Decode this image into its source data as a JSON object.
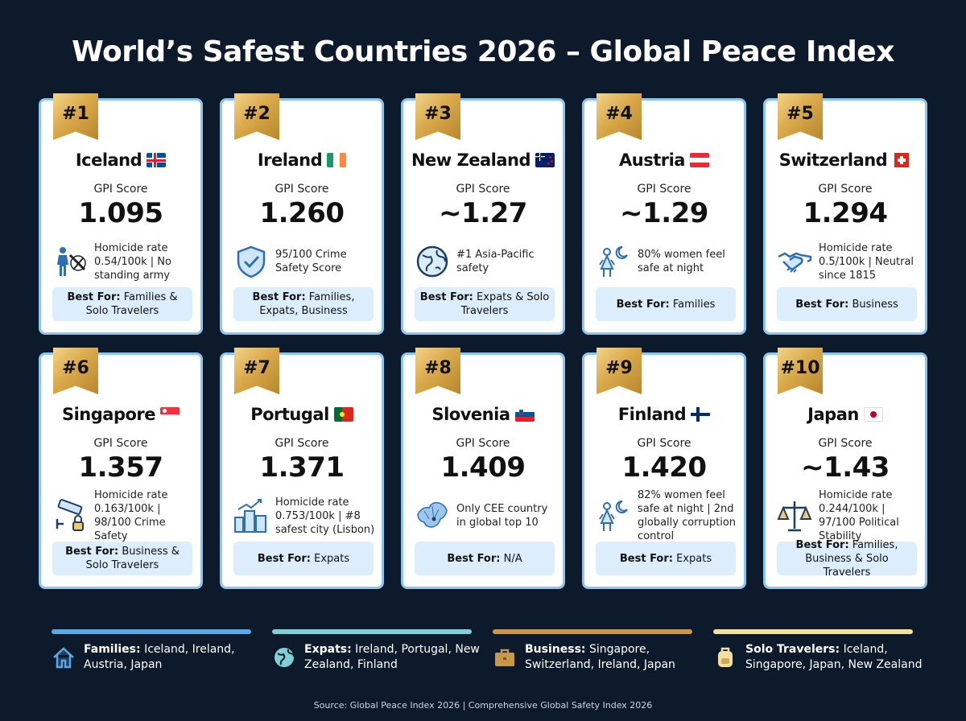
{
  "title": "World’s Safest Countries 2026 – Global Peace Index",
  "gpi_label": "GPI Score",
  "best_for_prefix": "Best For:",
  "cards": [
    {
      "rank": "#1",
      "country": "Iceland",
      "flag": "iceland",
      "score": "1.095",
      "icon": "soldier-no-weapon-icon",
      "detail": "Homicide rate 0.54/100k | No standing army",
      "best_for": "Families & Solo Travelers"
    },
    {
      "rank": "#2",
      "country": "Ireland",
      "flag": "ireland",
      "score": "1.260",
      "icon": "shield-check-icon",
      "detail": "95/100 Crime Safety Score",
      "best_for": "Families, Expats, Business"
    },
    {
      "rank": "#3",
      "country": "New Zealand",
      "flag": "new-zealand",
      "score": "~1.27",
      "icon": "globe-icon",
      "detail": "#1 Asia-Pacific safety",
      "best_for": "Expats & Solo Travelers"
    },
    {
      "rank": "#4",
      "country": "Austria",
      "flag": "austria",
      "score": "~1.29",
      "icon": "woman-moon-icon",
      "detail": "80% women feel safe at night",
      "best_for": "Families"
    },
    {
      "rank": "#5",
      "country": "Switzerland",
      "flag": "switzerland",
      "score": "1.294",
      "icon": "handshake-icon",
      "detail": "Homicide rate 0.5/100k | Neutral since 1815",
      "best_for": "Business"
    },
    {
      "rank": "#6",
      "country": "Singapore",
      "flag": "singapore",
      "score": "1.357",
      "icon": "cctv-lock-icon",
      "detail": "Homicide rate 0.163/100k | 98/100 Crime Safety",
      "best_for": "Business & Solo Travelers"
    },
    {
      "rank": "#7",
      "country": "Portugal",
      "flag": "portugal",
      "score": "1.371",
      "icon": "city-growth-icon",
      "detail": "Homicide rate 0.753/100k | #8 safest city (Lisbon)",
      "best_for": "Expats"
    },
    {
      "rank": "#8",
      "country": "Slovenia",
      "flag": "slovenia",
      "score": "1.409",
      "icon": "europe-map-icon",
      "detail": "Only CEE country in global top 10",
      "best_for": "N/A"
    },
    {
      "rank": "#9",
      "country": "Finland",
      "flag": "finland",
      "score": "1.420",
      "icon": "woman-moon-icon",
      "detail": "82% women feel safe at night | 2nd globally corruption control",
      "best_for": "Expats"
    },
    {
      "rank": "#10",
      "country": "Japan",
      "flag": "japan",
      "score": "~1.43",
      "icon": "scales-icon",
      "detail": "Homicide rate 0.244/100k | 97/100 Political Stability",
      "best_for": "Families, Business & Solo Travelers"
    }
  ],
  "legend": [
    {
      "label": "Families:",
      "text": "Iceland, Ireland, Austria, Japan",
      "icon": "house-icon",
      "color": "#5aa9e6"
    },
    {
      "label": "Expats:",
      "text": "Ireland, Portugal, New Zealand, Finland",
      "icon": "globe-icon",
      "color": "#7fd0d6"
    },
    {
      "label": "Business:",
      "text": "Singapore, Switzerland, Ireland, Japan",
      "icon": "briefcase-icon",
      "color": "#c9974a"
    },
    {
      "label": "Solo Travelers:",
      "text": "Iceland, Singapore, Japan, New Zealand",
      "icon": "backpack-icon",
      "color": "#f3dfa2"
    }
  ],
  "source": "Source: Global Peace Index 2026 | Comprehensive Global Safety Index 2026"
}
